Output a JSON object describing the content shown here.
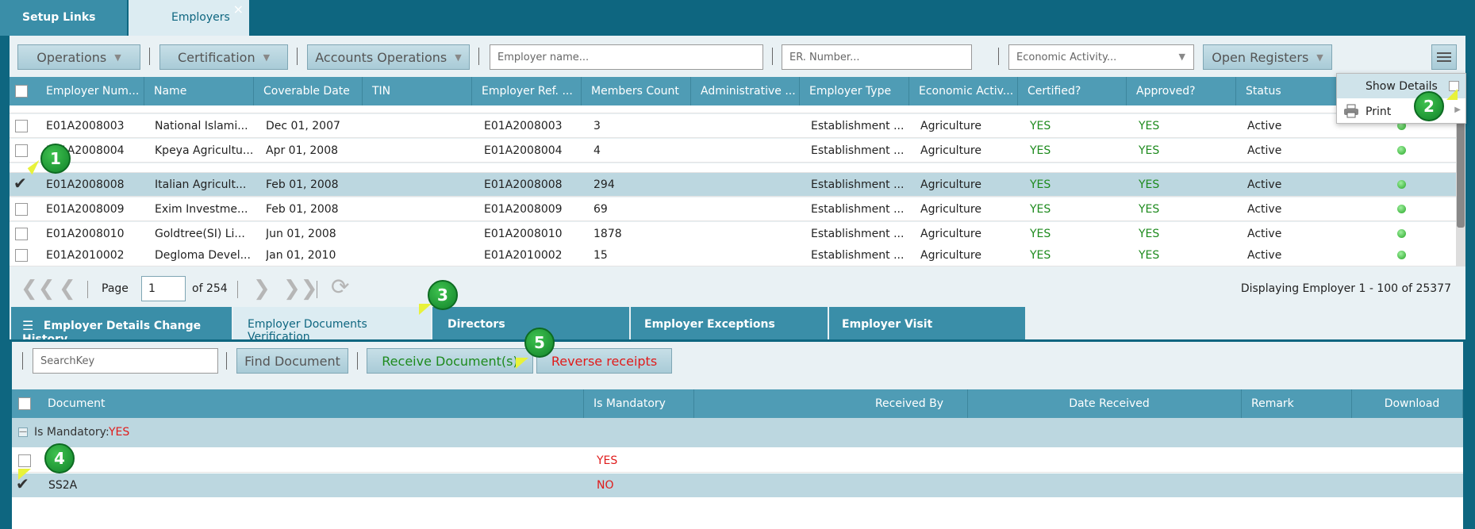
{
  "top_tabs": {
    "setup_links": "Setup Links",
    "employers": "Employers",
    "close": "×"
  },
  "toolbar": {
    "operations": "Operations",
    "certification": "Certification",
    "accounts_operations": "Accounts Operations",
    "employer_name_placeholder": "Employer name...",
    "er_number_placeholder": "ER. Number...",
    "economic_activity_placeholder": "Economic Activity...",
    "open_registers": "Open Registers",
    "menu_icon": "hamburger-icon"
  },
  "context_menu": {
    "show_details": "Show Details",
    "print": "Print"
  },
  "grid": {
    "columns": [
      "Employer Num...",
      "Name",
      "Coverable Date",
      "TIN",
      "Employer Ref. ...",
      "Members Count",
      "Administrative ...",
      "Employer Type",
      "Economic Activ...",
      "Certified?",
      "Approved?",
      "Status"
    ],
    "rows": [
      {
        "num": "E01A2008003",
        "name": "National Islami...",
        "date": "Dec 01, 2007",
        "tin": "",
        "ref": "E01A2008003",
        "members": "3",
        "admin": "",
        "type": "Establishment ...",
        "activity": "Agriculture",
        "certified": "YES",
        "approved": "YES",
        "status": "Active",
        "selected": false
      },
      {
        "num": "E01A2008004",
        "name": "Kpeya Agricultu...",
        "date": "Apr 01, 2008",
        "tin": "",
        "ref": "E01A2008004",
        "members": "4",
        "admin": "",
        "type": "Establishment ...",
        "activity": "Agriculture",
        "certified": "YES",
        "approved": "YES",
        "status": "Active",
        "selected": false
      },
      {
        "num": "E01A2008008",
        "name": "Italian Agricult...",
        "date": "Feb 01, 2008",
        "tin": "",
        "ref": "E01A2008008",
        "members": "294",
        "admin": "",
        "type": "Establishment ...",
        "activity": "Agriculture",
        "certified": "YES",
        "approved": "YES",
        "status": "Active",
        "selected": true
      },
      {
        "num": "E01A2008009",
        "name": "Exim Investme...",
        "date": "Feb 01, 2008",
        "tin": "",
        "ref": "E01A2008009",
        "members": "69",
        "admin": "",
        "type": "Establishment ...",
        "activity": "Agriculture",
        "certified": "YES",
        "approved": "YES",
        "status": "Active",
        "selected": false
      },
      {
        "num": "E01A2008010",
        "name": "Goldtree(SI) Li...",
        "date": "Jun 01, 2008",
        "tin": "",
        "ref": "E01A2008010",
        "members": "1878",
        "admin": "",
        "type": "Establishment ...",
        "activity": "Agriculture",
        "certified": "YES",
        "approved": "YES",
        "status": "Active",
        "selected": false
      },
      {
        "num": "E01A2010002",
        "name": "Degloma Devel...",
        "date": "Jan 01, 2010",
        "tin": "",
        "ref": "E01A2010002",
        "members": "15",
        "admin": "",
        "type": "Establishment ...",
        "activity": "Agriculture",
        "certified": "YES",
        "approved": "YES",
        "status": "Active",
        "selected": false
      }
    ]
  },
  "pager": {
    "page_label": "Page",
    "page_value": "1",
    "of_label": "of 254",
    "displaying": "Displaying Employer 1 - 100 of 25377"
  },
  "lower_tabs": [
    "Employer Details Change History",
    "Employer Documents Verification",
    "Directors",
    "Employer Exceptions",
    "Employer Visit"
  ],
  "doc_toolbar": {
    "search_placeholder": "SearchKey",
    "find_document": "Find Document",
    "receive_documents": "Receive Document(s)",
    "reverse_receipts": "Reverse receipts"
  },
  "doc_grid": {
    "columns": [
      "Document",
      "Is Mandatory",
      "Received By",
      "Date Received",
      "Remark",
      "Download"
    ],
    "group_label": "Is Mandatory:",
    "group_value": "YES",
    "rows": [
      {
        "document": "",
        "mandatory": "YES",
        "selected": false
      },
      {
        "document": "SS2A",
        "mandatory": "NO",
        "selected": true
      }
    ]
  },
  "callouts": [
    "1",
    "2",
    "3",
    "4",
    "5"
  ],
  "colors": {
    "brand": "#0e6680",
    "header": "#4f9cb5",
    "selected_row": "#bcd7e0",
    "yes_green": "#1d8a1d",
    "red": "#e01b1b"
  }
}
